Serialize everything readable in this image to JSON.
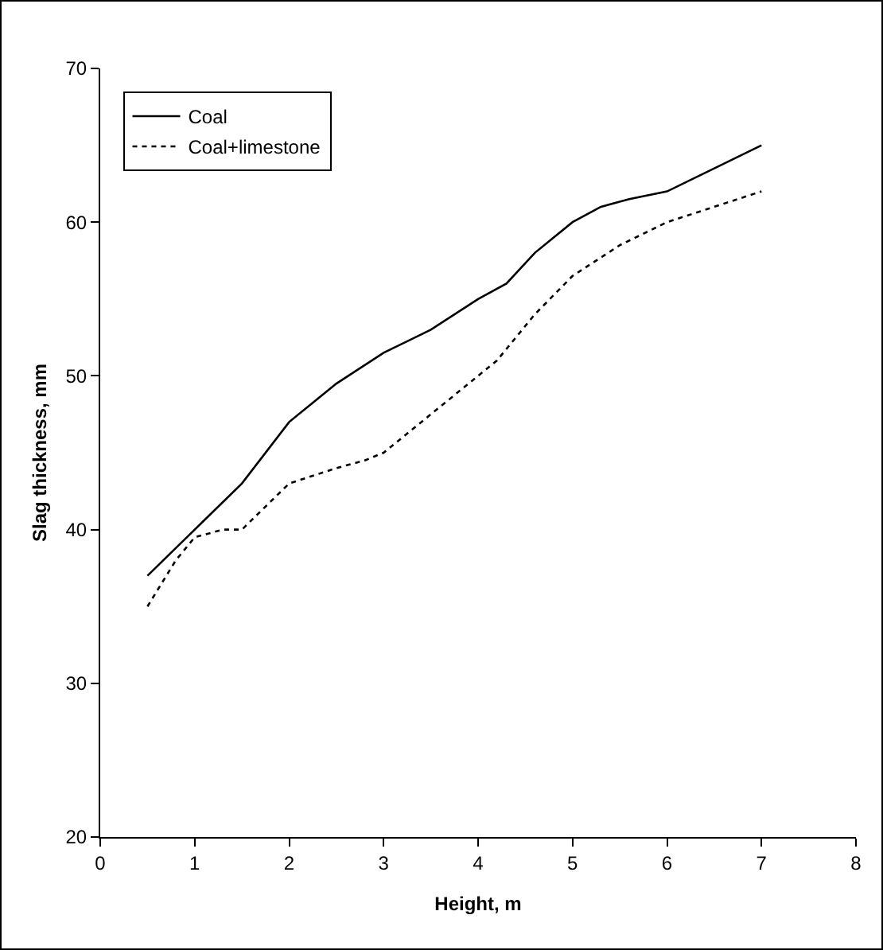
{
  "chart_data": {
    "type": "line",
    "xlabel": "Height, m",
    "ylabel": "Slag thickness, mm",
    "xlim": [
      0,
      8
    ],
    "xticks": [
      0,
      1,
      2,
      3,
      4,
      5,
      6,
      7,
      8
    ],
    "ylim": [
      20,
      70
    ],
    "yticks": [
      20,
      30,
      40,
      50,
      60,
      70
    ],
    "grid": false,
    "legend": "top left",
    "marker": "none",
    "series": [
      {
        "name": "Coal",
        "color": "#000000",
        "line_style": "solid",
        "x": [
          0.5,
          1,
          1.5,
          2,
          2.5,
          3,
          3.5,
          4,
          4.3,
          4.6,
          5,
          5.3,
          5.6,
          6,
          6.5,
          7
        ],
        "values": [
          37,
          40,
          43,
          47,
          49.5,
          51.5,
          53,
          55,
          56,
          58,
          60,
          61,
          61.5,
          62,
          63.5,
          65
        ]
      },
      {
        "name": "Coal+limestone",
        "color": "#000000",
        "line_style": "dotted",
        "x": [
          0.5,
          0.8,
          1,
          1.3,
          1.5,
          2,
          2.5,
          2.8,
          3,
          3.5,
          4,
          4.2,
          4.6,
          5,
          5.5,
          6,
          6.5,
          7
        ],
        "values": [
          35,
          38,
          39.5,
          40,
          40,
          43,
          44,
          44.5,
          45,
          47.5,
          50,
          51,
          54,
          56.5,
          58.5,
          60,
          61,
          62
        ]
      }
    ]
  }
}
